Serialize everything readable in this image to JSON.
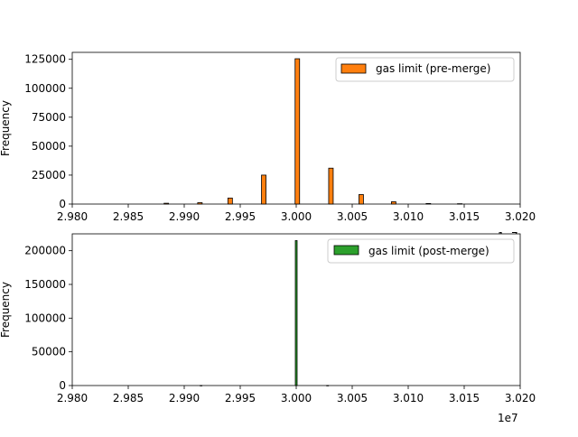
{
  "chart_data": [
    {
      "type": "bar",
      "series": [
        {
          "name": "gas limit (pre-merge)",
          "color": "#ff7f0e"
        }
      ],
      "bin_centers_1e7": [
        2.9884,
        2.9914,
        2.9941,
        2.9971,
        3.0001,
        3.0031,
        3.0058,
        3.0087,
        3.0118,
        3.0146
      ],
      "values": [
        700,
        1200,
        5200,
        25000,
        125500,
        31000,
        8200,
        2000,
        500,
        300
      ],
      "xlim": [
        2.98,
        3.02
      ],
      "ylim": [
        0,
        131000
      ],
      "xticks": [
        "2.980",
        "2.985",
        "2.990",
        "2.995",
        "3.000",
        "3.005",
        "3.010",
        "3.015",
        "3.020"
      ],
      "yticks": [
        "0",
        "25000",
        "50000",
        "75000",
        "100000",
        "125000"
      ],
      "ytick_values": [
        0,
        25000,
        50000,
        75000,
        100000,
        125000
      ],
      "ylabel": "Frequency",
      "offset_label": "1e7",
      "legend_position": "top-right"
    },
    {
      "type": "bar",
      "series": [
        {
          "name": "gas limit (post-merge)",
          "color": "#2ca02c"
        }
      ],
      "bin_centers_1e7": [
        3.0,
        2.9915,
        3.0028
      ],
      "values": [
        215000,
        150,
        150
      ],
      "xlim": [
        2.98,
        3.02
      ],
      "ylim": [
        0,
        225000
      ],
      "xticks": [
        "2.980",
        "2.985",
        "2.990",
        "2.995",
        "3.000",
        "3.005",
        "3.010",
        "3.015",
        "3.020"
      ],
      "yticks": [
        "0",
        "50000",
        "100000",
        "150000",
        "200000"
      ],
      "ytick_values": [
        0,
        50000,
        100000,
        150000,
        200000
      ],
      "ylabel": "Frequency",
      "offset_label": "1e7",
      "legend_position": "top-right"
    }
  ]
}
